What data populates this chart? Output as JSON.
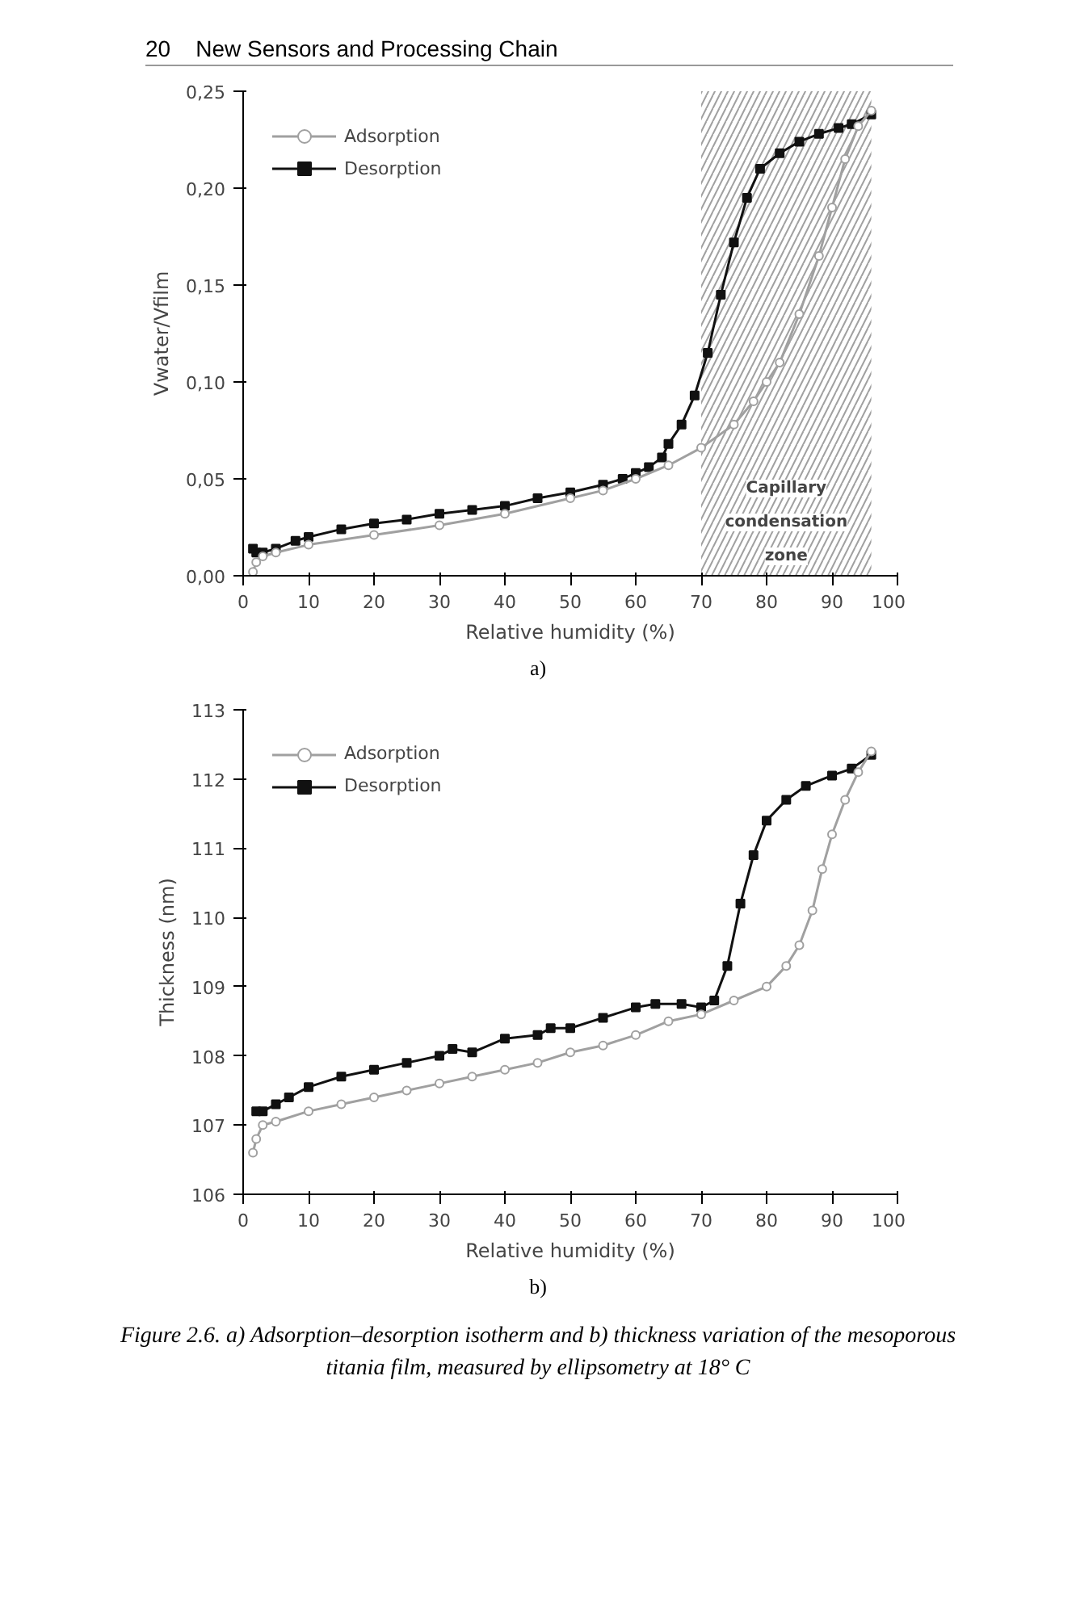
{
  "chart_data": [
    {
      "type": "line",
      "xlabel": "Relative humidity (%)",
      "ylabel": "Vwater/Vfilm",
      "annotations": [
        "20    New Sensors and Processing Chain",
        "a)"
      ],
      "xlim": [
        0,
        100
      ],
      "xticks": [
        0,
        10,
        20,
        30,
        40,
        50,
        60,
        70,
        80,
        90,
        100
      ],
      "ylim": [
        0,
        0.25
      ],
      "yticks": [
        {
          "value": 0,
          "label": "0,00"
        },
        {
          "value": 0.05,
          "label": "0,05"
        },
        {
          "value": 0.1,
          "label": "0,10"
        },
        {
          "value": 0.15,
          "label": "0,15"
        },
        {
          "value": 0.2,
          "label": "0,20"
        },
        {
          "value": 0.25,
          "label": "0,25"
        }
      ],
      "grid": false,
      "legend": "top left",
      "line_style": "solid",
      "bands": [
        {
          "axis": "x",
          "from": 70,
          "to": 96,
          "label": "Capillary condensation zone",
          "color": "#a0a0a0"
        }
      ],
      "series": [
        {
          "name": "Adsorption",
          "color": "#a0a0a0",
          "marker": "circle",
          "x": [
            1.5,
            2,
            3,
            5,
            10,
            20,
            30,
            40,
            50,
            55,
            60,
            65,
            70,
            75,
            78,
            80,
            82,
            85,
            88,
            90,
            92,
            94,
            96
          ],
          "values": [
            0.002,
            0.007,
            0.01,
            0.012,
            0.016,
            0.021,
            0.026,
            0.032,
            0.04,
            0.044,
            0.05,
            0.057,
            0.066,
            0.078,
            0.09,
            0.1,
            0.11,
            0.135,
            0.165,
            0.19,
            0.215,
            0.232,
            0.24
          ]
        },
        {
          "name": "Desorption",
          "color": "#111111",
          "marker": "square",
          "x": [
            1.5,
            2,
            3,
            5,
            8,
            10,
            15,
            20,
            25,
            30,
            35,
            40,
            45,
            50,
            55,
            58,
            60,
            62,
            64,
            65,
            67,
            69,
            71,
            73,
            75,
            77,
            79,
            82,
            85,
            88,
            91,
            93,
            96
          ],
          "values": [
            0.014,
            0.012,
            0.012,
            0.014,
            0.018,
            0.02,
            0.024,
            0.027,
            0.029,
            0.032,
            0.034,
            0.036,
            0.04,
            0.043,
            0.047,
            0.05,
            0.053,
            0.056,
            0.061,
            0.068,
            0.078,
            0.093,
            0.115,
            0.145,
            0.172,
            0.195,
            0.21,
            0.218,
            0.224,
            0.228,
            0.231,
            0.233,
            0.238
          ]
        }
      ]
    },
    {
      "type": "line",
      "xlabel": "Relative humidity (%)",
      "ylabel": "Thickness (nm)",
      "annotations": [
        "b)",
        "Figure 2.6. a) Adsorption–desorption isotherm and b) thickness variation of the mesoporous titania film, measured by ellipsometry at 18° C"
      ],
      "xlim": [
        0,
        100
      ],
      "xticks": [
        0,
        10,
        20,
        30,
        40,
        50,
        60,
        70,
        80,
        90,
        100
      ],
      "ylim": [
        106,
        113
      ],
      "yticks": [
        106,
        107,
        108,
        109,
        110,
        111,
        112,
        113
      ],
      "grid": false,
      "legend": "top left",
      "line_style": "solid",
      "series": [
        {
          "name": "Adsorption",
          "color": "#a0a0a0",
          "marker": "circle",
          "x": [
            1.5,
            2,
            3,
            5,
            10,
            15,
            20,
            25,
            30,
            35,
            40,
            45,
            50,
            55,
            60,
            65,
            70,
            75,
            80,
            83,
            85,
            87,
            88.5,
            90,
            92,
            94,
            96
          ],
          "values": [
            106.6,
            106.8,
            107.0,
            107.05,
            107.2,
            107.3,
            107.4,
            107.5,
            107.6,
            107.7,
            107.8,
            107.9,
            108.05,
            108.15,
            108.3,
            108.5,
            108.6,
            108.8,
            109.0,
            109.3,
            109.6,
            110.1,
            110.7,
            111.2,
            111.7,
            112.1,
            112.4
          ]
        },
        {
          "name": "Desorption",
          "color": "#111111",
          "marker": "square",
          "x": [
            2,
            3,
            5,
            7,
            10,
            15,
            20,
            25,
            30,
            32,
            35,
            40,
            45,
            47,
            50,
            55,
            60,
            63,
            67,
            70,
            72,
            74,
            76,
            78,
            80,
            83,
            86,
            90,
            93,
            96
          ],
          "values": [
            107.2,
            107.2,
            107.3,
            107.4,
            107.55,
            107.7,
            107.8,
            107.9,
            108.0,
            108.1,
            108.05,
            108.25,
            108.3,
            108.4,
            108.4,
            108.55,
            108.7,
            108.75,
            108.75,
            108.7,
            108.8,
            109.3,
            110.2,
            110.9,
            111.4,
            111.7,
            111.9,
            112.05,
            112.15,
            112.35
          ]
        }
      ]
    }
  ]
}
